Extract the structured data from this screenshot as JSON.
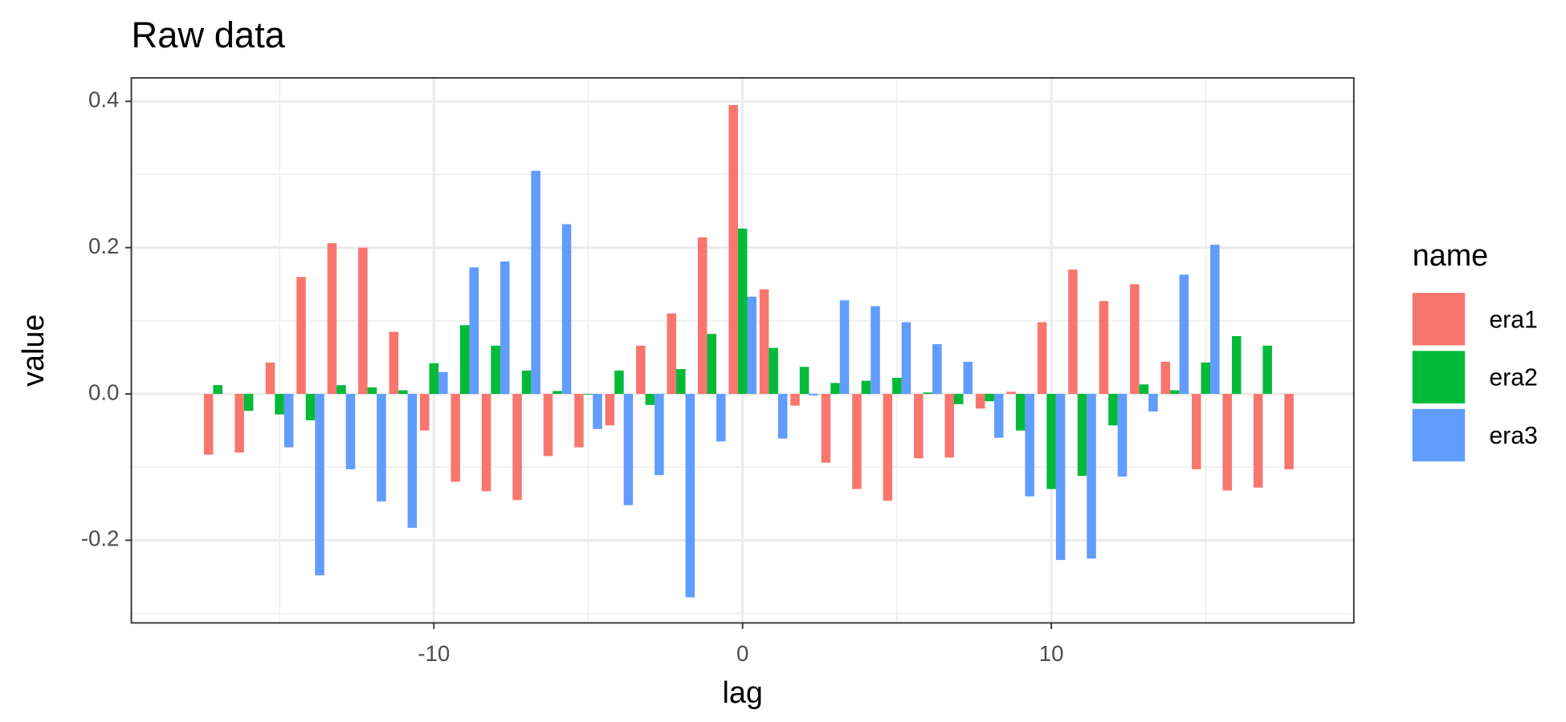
{
  "chart_data": {
    "type": "bar",
    "title": "Raw data",
    "x_label": "lag",
    "y_label": "value",
    "x": [
      -17,
      -16,
      -15,
      -14,
      -13,
      -12,
      -11,
      -10,
      -9,
      -8,
      -7,
      -6,
      -5,
      -4,
      -3,
      -2,
      -1,
      0,
      1,
      2,
      3,
      4,
      5,
      6,
      7,
      8,
      9,
      10,
      11,
      12,
      13,
      14,
      15,
      16,
      17,
      18
    ],
    "series": [
      {
        "name": "era1",
        "color": "#f8766d",
        "values": [
          -0.083,
          -0.08,
          0.043,
          0.16,
          0.206,
          0.2,
          0.085,
          -0.05,
          -0.12,
          -0.133,
          -0.145,
          -0.085,
          -0.073,
          -0.043,
          0.066,
          0.11,
          0.214,
          0.395,
          0.143,
          -0.016,
          -0.094,
          -0.13,
          -0.146,
          -0.088,
          -0.087,
          -0.02,
          0.003,
          0.098,
          0.17,
          0.127,
          0.15,
          0.044,
          -0.103,
          -0.132,
          -0.128,
          -0.103
        ]
      },
      {
        "name": "era2",
        "color": "#00ba38",
        "values": [
          0.012,
          -0.023,
          -0.028,
          -0.036,
          0.012,
          0.009,
          0.005,
          0.042,
          0.094,
          0.066,
          0.032,
          0.004,
          -0.001,
          0.032,
          -0.015,
          0.034,
          0.082,
          0.226,
          0.063,
          0.037,
          0.015,
          0.018,
          0.022,
          0.002,
          -0.014,
          -0.01,
          -0.05,
          -0.13,
          -0.112,
          -0.043,
          0.013,
          0.005,
          0.043,
          0.079,
          0.066,
          null
        ]
      },
      {
        "name": "era3",
        "color": "#619cff",
        "values": [
          null,
          null,
          -0.073,
          -0.248,
          -0.103,
          -0.147,
          -0.183,
          0.03,
          0.173,
          0.181,
          0.305,
          0.232,
          -0.048,
          -0.152,
          -0.111,
          -0.278,
          -0.065,
          0.133,
          -0.061,
          -0.002,
          0.128,
          0.12,
          0.098,
          0.068,
          0.044,
          -0.06,
          -0.14,
          -0.227,
          -0.225,
          -0.113,
          -0.024,
          0.163,
          0.204,
          null,
          null,
          null
        ]
      }
    ],
    "xlim": [
      -19.8,
      19.8
    ],
    "xticks": [
      -10,
      0,
      10
    ],
    "ylim": [
      -0.313,
      0.432
    ],
    "yticks": [
      {
        "value": -0.2,
        "label": "-0.2"
      },
      {
        "value": 0,
        "label": "0.0"
      },
      {
        "value": 0.2,
        "label": "0.2"
      },
      {
        "value": 0.4,
        "label": "0.4"
      }
    ],
    "grid": true,
    "legend_title": "name",
    "legend_position": "right"
  }
}
